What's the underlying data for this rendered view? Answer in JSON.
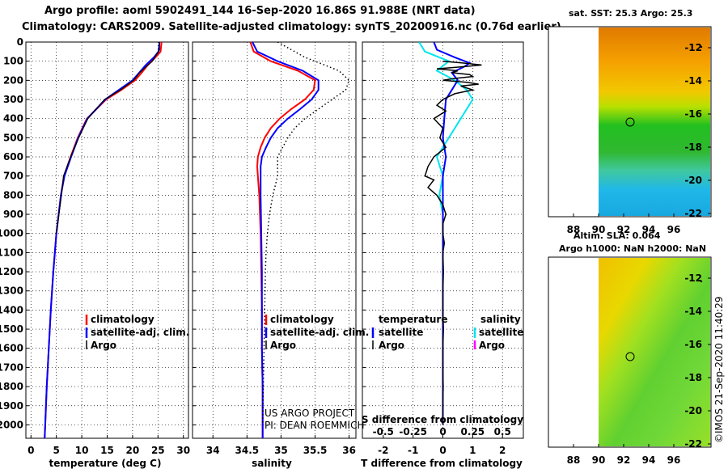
{
  "title_line1": "Argo profile: aoml 5902491_144 16-Sep-2020 16.86S 91.988E (NRT data)",
  "title_line2": "Climatology: CARS2009. Satellite-adjusted climatology: synTS_20200916.nc (0.76d earlier)",
  "map_top_title": "sat. SST: 25.3 Argo: 25.3",
  "map_bottom_title_1": "Altim. SLA: 0.064",
  "map_bottom_title_2": "Argo h1000: NaN h2000: NaN",
  "credit": "©IMOS 21-Sep-2020 11:40:29",
  "colors": {
    "climatology": "#ff0000",
    "satellite": "#0000ff",
    "argo": "#000000",
    "salinity_satellite": "#00e5ee",
    "salinity_argo": "#ff00ff"
  },
  "chart_data": [
    {
      "type": "line",
      "title": "Temperature profile",
      "xlabel": "temperature (deg C)",
      "ylabel": "depth",
      "xlim": [
        -1,
        31
      ],
      "ylim": [
        2070,
        0
      ],
      "x_ticks": [
        "0",
        "5",
        "10",
        "15",
        "20",
        "25",
        "30"
      ],
      "y_ticks": [
        "0",
        "100",
        "200",
        "300",
        "400",
        "500",
        "600",
        "700",
        "800",
        "900",
        "1000",
        "1100",
        "1200",
        "1300",
        "1400",
        "1500",
        "1600",
        "1700",
        "1800",
        "1900",
        "2000"
      ],
      "legend": [
        "climatology",
        "satellite-adj. clim.",
        "Argo"
      ],
      "series": [
        {
          "name": "climatology",
          "color": "#ff0000",
          "depth": [
            0,
            50,
            80,
            120,
            160,
            200,
            250,
            300,
            400,
            500,
            600,
            700,
            800,
            1000,
            1200,
            1400,
            1600,
            1800,
            2000,
            2070
          ],
          "values": [
            25.7,
            25.5,
            24.5,
            23.0,
            21.8,
            20.5,
            17.8,
            14.8,
            11.0,
            9.2,
            7.8,
            6.5,
            5.9,
            5.0,
            4.4,
            3.9,
            3.5,
            3.1,
            2.8,
            2.7
          ]
        },
        {
          "name": "satellite-adj. clim.",
          "color": "#0000ff",
          "depth": [
            0,
            50,
            80,
            120,
            160,
            200,
            250,
            300,
            400,
            500,
            600,
            700,
            800,
            1000,
            1200,
            1400,
            1600,
            1800,
            2000,
            2070
          ],
          "values": [
            25.3,
            25.1,
            24.2,
            22.6,
            21.3,
            20.0,
            17.3,
            14.6,
            11.1,
            9.3,
            7.9,
            6.6,
            5.9,
            5.0,
            4.4,
            3.9,
            3.5,
            3.1,
            2.8,
            2.7
          ]
        },
        {
          "name": "Argo",
          "color": "#000000",
          "depth": [
            0,
            40,
            70,
            100,
            130,
            160,
            200,
            250,
            300,
            350,
            400,
            500,
            600,
            700,
            800,
            900,
            1000
          ],
          "values": [
            25.3,
            25.3,
            24.6,
            23.9,
            22.6,
            21.4,
            20.2,
            17.6,
            14.5,
            12.8,
            11.2,
            9.4,
            7.8,
            6.4,
            6.0,
            5.5,
            5.0
          ]
        }
      ]
    },
    {
      "type": "line",
      "title": "Salinity profile",
      "xlabel": "salinity",
      "ylabel": "depth",
      "xlim": [
        33.7,
        36.1
      ],
      "ylim": [
        2070,
        0
      ],
      "x_ticks": [
        "34",
        "34.5",
        "35",
        "35.5",
        "36"
      ],
      "legend": [
        "climatology",
        "satellite-adj. clim.",
        "Argo"
      ],
      "notes": [
        "US ARGO PROJECT",
        "PI: DEAN ROEMMICH"
      ],
      "series": [
        {
          "name": "climatology",
          "color": "#ff0000",
          "depth": [
            0,
            50,
            100,
            150,
            200,
            250,
            300,
            350,
            400,
            450,
            500,
            550,
            600,
            650,
            700,
            800,
            1000,
            1200,
            1400,
            1600,
            1800,
            2000,
            2070
          ],
          "values": [
            34.55,
            34.6,
            34.85,
            35.25,
            35.5,
            35.48,
            35.35,
            35.15,
            34.98,
            34.85,
            34.76,
            34.7,
            34.66,
            34.65,
            34.66,
            34.68,
            34.7,
            34.71,
            34.72,
            34.72,
            34.73,
            34.73,
            34.73
          ]
        },
        {
          "name": "satellite-adj. clim.",
          "color": "#0000ff",
          "depth": [
            0,
            50,
            100,
            150,
            200,
            250,
            300,
            350,
            400,
            450,
            500,
            550,
            600,
            650,
            700,
            800,
            1000,
            1200,
            1400,
            1600,
            1800,
            2000,
            2070
          ],
          "values": [
            34.58,
            34.65,
            34.95,
            35.32,
            35.55,
            35.55,
            35.45,
            35.28,
            35.1,
            34.95,
            34.85,
            34.78,
            34.72,
            34.7,
            34.7,
            34.7,
            34.71,
            34.72,
            34.72,
            34.72,
            34.73,
            34.73,
            34.73
          ]
        },
        {
          "name": "Argo",
          "color": "#000000",
          "depth": [
            0,
            20,
            50,
            80,
            100,
            150,
            200,
            250,
            300,
            350,
            400,
            450,
            500,
            600,
            700,
            800,
            900,
            1000,
            1100,
            1200,
            1400,
            1600,
            1800,
            2000
          ],
          "values": [
            34.95,
            35.05,
            35.2,
            35.35,
            35.5,
            35.85,
            36.0,
            35.95,
            35.75,
            35.55,
            35.35,
            35.2,
            35.1,
            34.95,
            34.95,
            34.88,
            34.83,
            34.8,
            34.78,
            34.77,
            34.76,
            34.75,
            34.74,
            34.73
          ]
        }
      ]
    },
    {
      "type": "line",
      "title": "Differences from climatology",
      "xlabel": "T difference from climatology",
      "x2label": "S difference from climatology",
      "xlim": [
        -2.7,
        2.7
      ],
      "ylim": [
        2070,
        0
      ],
      "x_ticks": [
        "-2",
        "-1",
        "0",
        "1",
        "2"
      ],
      "x2_ticks": [
        "-0.5",
        "-0.25",
        "0",
        "0.25",
        "0.5"
      ],
      "legend_headers": [
        "temperature",
        "salinity"
      ],
      "legend": [
        "satellite",
        "Argo",
        "satellite",
        "Argo"
      ],
      "series": [
        {
          "name": "temperature satellite",
          "color": "#0000ff",
          "depth": [
            0,
            40,
            80,
            110,
            130,
            160,
            200,
            250,
            300,
            400,
            500,
            600,
            700,
            800,
            1000,
            1500,
            2000
          ],
          "values": [
            -0.3,
            -0.2,
            0.4,
            0.9,
            0.7,
            0.3,
            0.5,
            0.3,
            0.1,
            0.05,
            0.0,
            0.1,
            0.0,
            0.0,
            0.0,
            0.0,
            0.0
          ]
        },
        {
          "name": "temperature Argo",
          "color": "#000000",
          "depth": [
            100,
            110,
            120,
            130,
            140,
            150,
            160,
            170,
            180,
            190,
            200,
            210,
            220,
            230,
            250,
            270,
            300,
            330,
            360,
            400,
            450,
            500,
            550,
            600,
            650,
            700,
            720,
            760,
            800,
            850,
            900,
            950,
            1000,
            1050,
            1100,
            1200,
            1300,
            1400,
            1500,
            1600,
            1700,
            1800,
            1900,
            2000
          ],
          "values": [
            0.0,
            0.7,
            1.3,
            0.6,
            -0.2,
            0.5,
            0.3,
            0.9,
            1.0,
            0.4,
            0.0,
            0.8,
            1.2,
            0.6,
            1.0,
            0.4,
            0.0,
            -0.2,
            0.1,
            -0.3,
            0.0,
            -0.1,
            0.1,
            -0.3,
            -0.5,
            -0.6,
            -0.3,
            -0.5,
            -0.2,
            0.0,
            0.1,
            0.0,
            0.0,
            0.05,
            0.0,
            0.02,
            0.0,
            0.0,
            0.02,
            0.0,
            0.0,
            0.01,
            0.0,
            0.0
          ]
        },
        {
          "name": "salinity satellite",
          "color": "#00e5ee",
          "depth": [
            0,
            50,
            100,
            150,
            200,
            250,
            300,
            350,
            400,
            500,
            600,
            700,
            800,
            900,
            1000,
            1200,
            1500,
            2000
          ],
          "values": [
            -0.2,
            -0.15,
            0.05,
            -0.05,
            0.1,
            0.2,
            0.25,
            0.2,
            0.15,
            0.05,
            -0.05,
            0.0,
            -0.03,
            0.0,
            0.0,
            0.0,
            0.0,
            0.0
          ]
        }
      ]
    }
  ],
  "maps": [
    {
      "name": "sst",
      "lat_ticks": [
        "-12",
        "-14",
        "-16",
        "-18",
        "-20",
        "-22"
      ],
      "lon_ticks": [
        "88",
        "90",
        "92",
        "94",
        "96"
      ]
    },
    {
      "name": "sla",
      "lat_ticks": [
        "-12",
        "-14",
        "-16",
        "-18",
        "-20",
        "-22"
      ],
      "lon_ticks": [
        "88",
        "90",
        "92",
        "94",
        "96"
      ]
    }
  ]
}
